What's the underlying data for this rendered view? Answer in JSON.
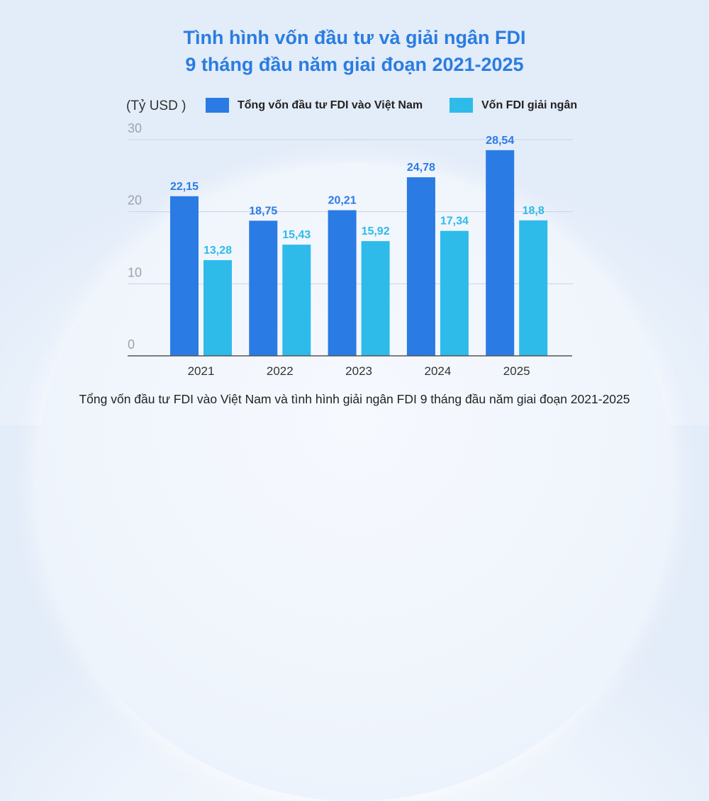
{
  "chart_data": {
    "type": "bar",
    "title": [
      "Tình hình vốn đầu tư và giải ngân FDI",
      "9 tháng đầu năm giai đoạn 2021-2025"
    ],
    "ylabel": "(Tỷ USD )",
    "xlabel": "",
    "categories": [
      "2021",
      "2022",
      "2023",
      "2024",
      "2025"
    ],
    "series": [
      {
        "name": "Tổng vốn đầu tư FDI vào Việt Nam",
        "values": [
          22.15,
          18.75,
          20.21,
          24.78,
          28.54
        ],
        "labels": [
          "22,15",
          "18,75",
          "20,21",
          "24,78",
          "28,54"
        ],
        "color": "#2b7be4"
      },
      {
        "name": "Vốn FDI giải ngân",
        "values": [
          13.28,
          15.43,
          15.92,
          17.34,
          18.8
        ],
        "labels": [
          "13,28",
          "15,43",
          "15,92",
          "17,34",
          "18,8"
        ],
        "color": "#2ebbea"
      }
    ],
    "ylim": [
      0,
      30
    ],
    "yticks": [
      0,
      10,
      20,
      30
    ],
    "grid": true,
    "legend_position": "top",
    "caption": "Tổng vốn đầu tư FDI vào Việt Nam và tình hình giải ngân FDI 9 tháng đầu năm giai đoạn 2021-2025"
  }
}
